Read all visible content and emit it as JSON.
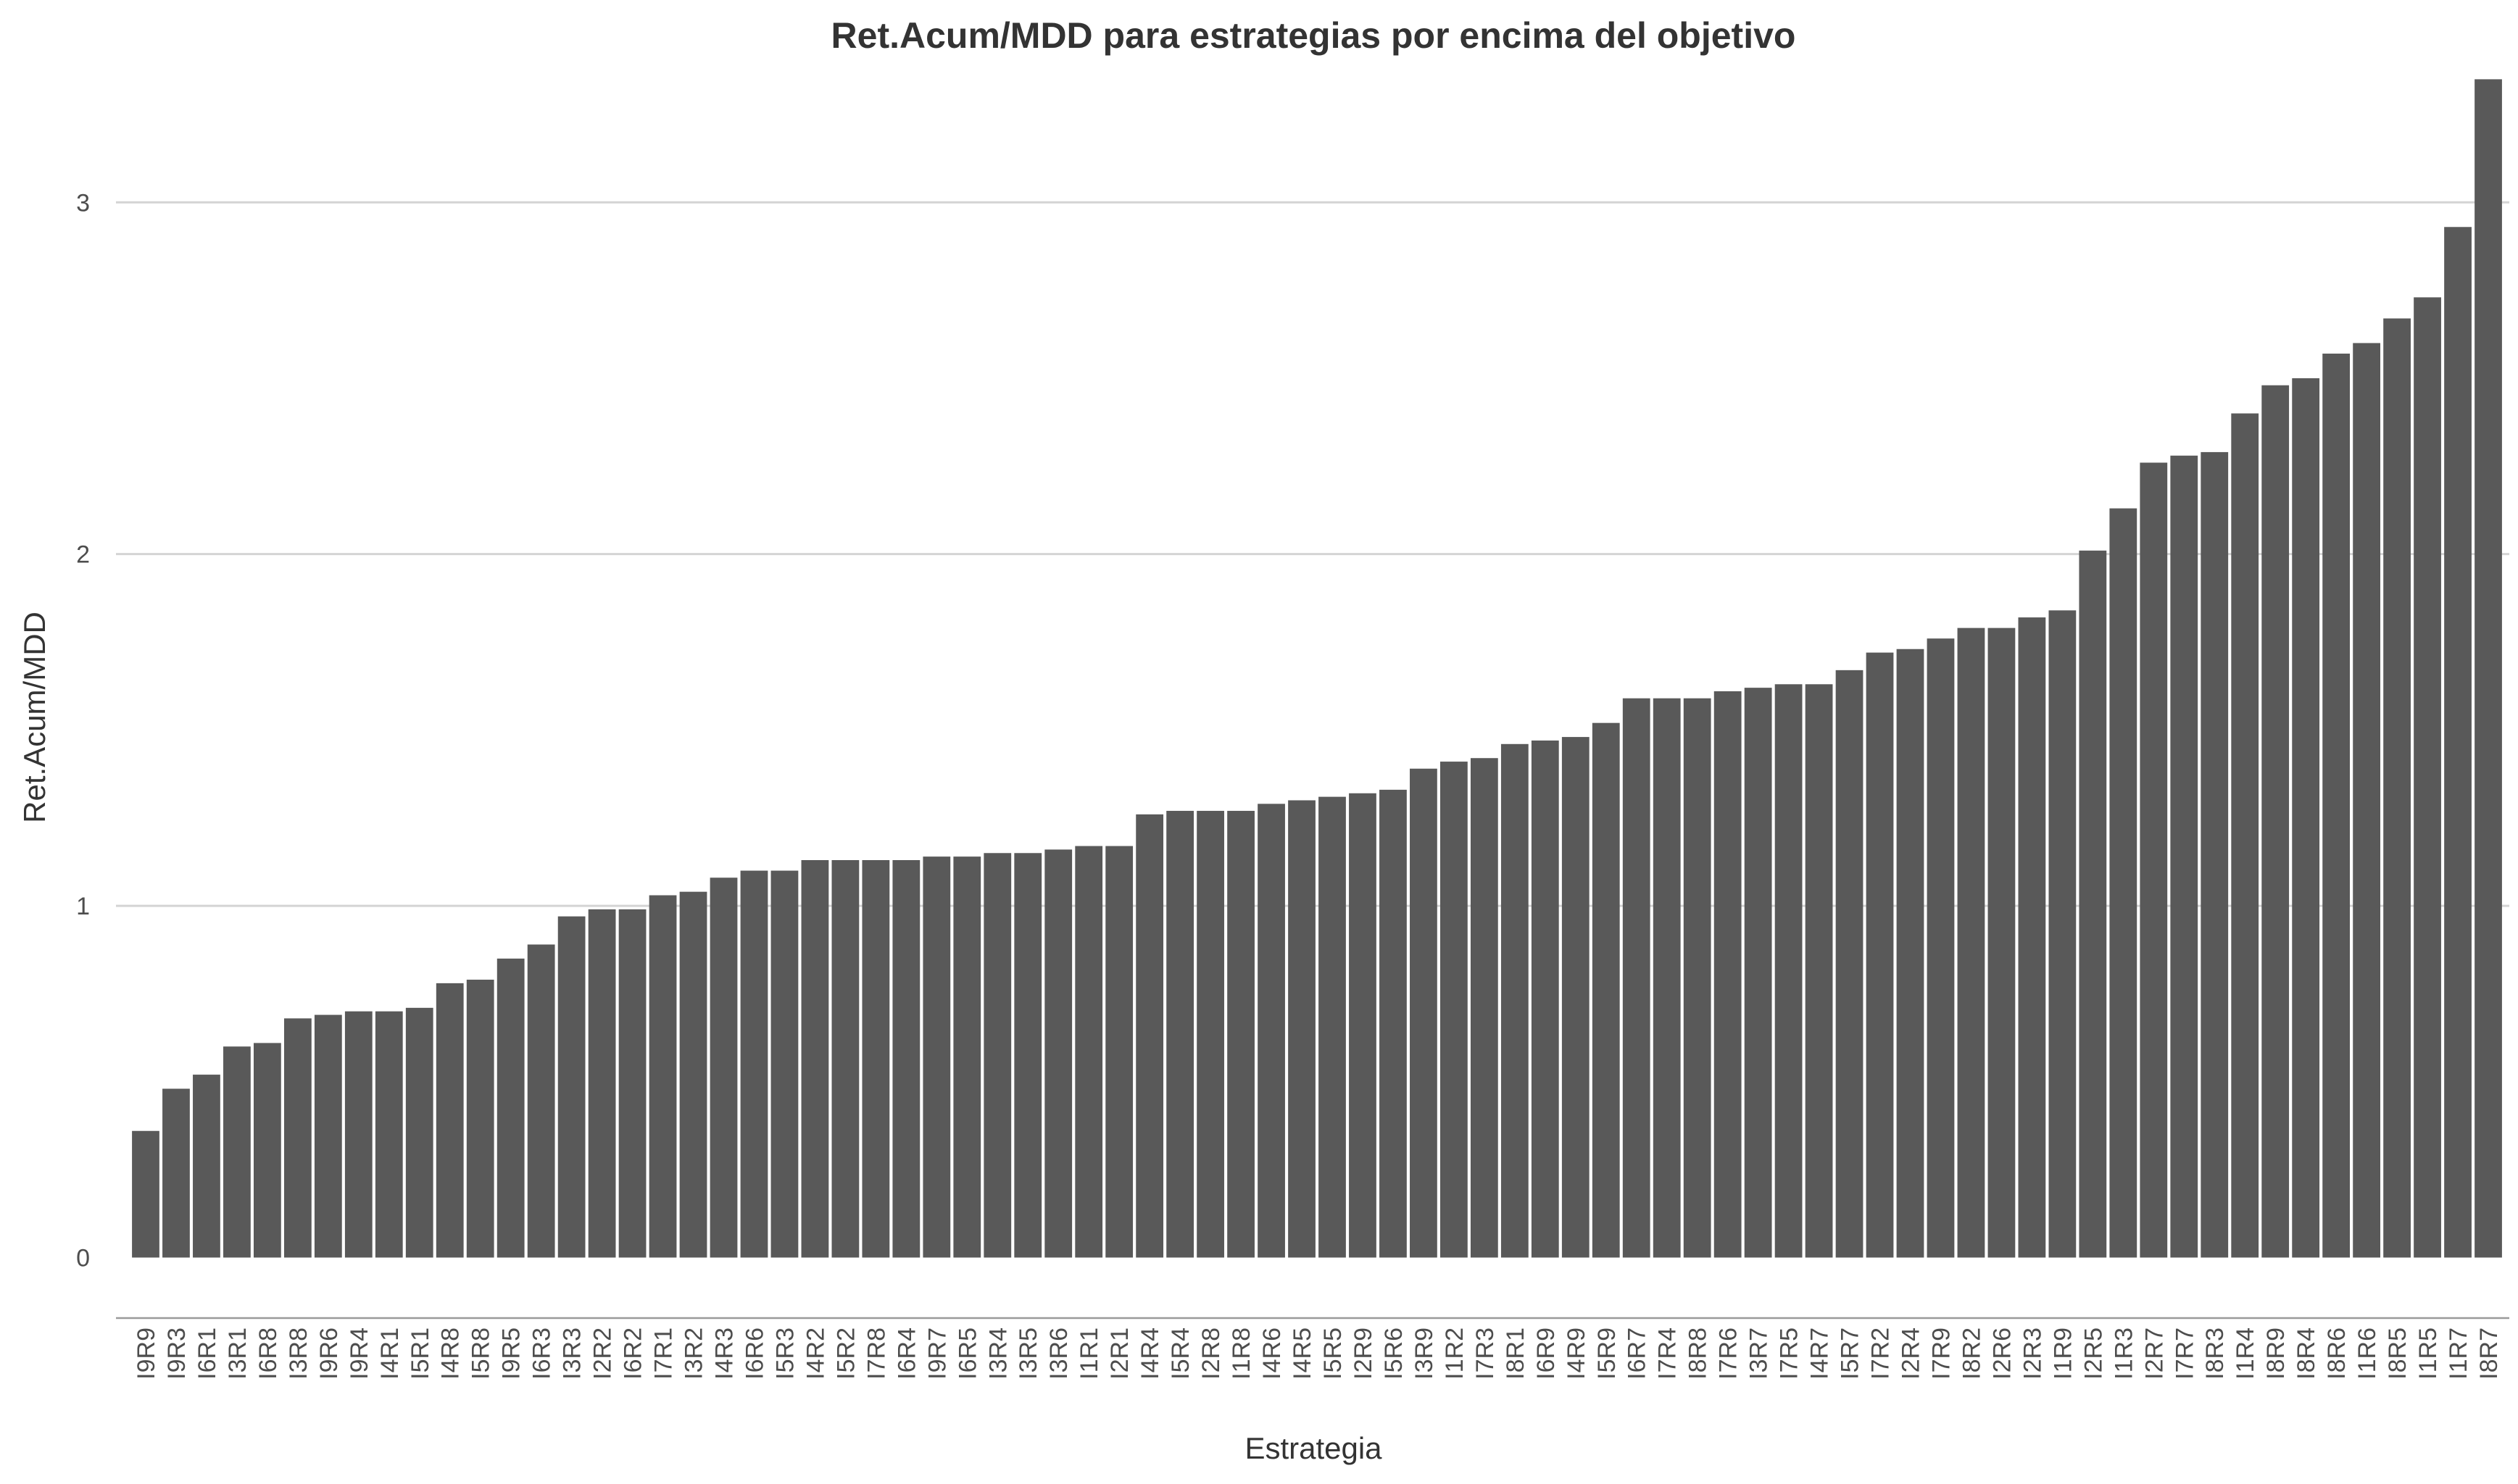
{
  "chart_data": {
    "type": "bar",
    "title": "Ret.Acum/MDD para estrategias por encima del objetivo",
    "xlabel": "Estrategia",
    "ylabel": "Ret.Acum/MDD",
    "ylim": [
      -0.17,
      3.46
    ],
    "yticks": [
      0,
      1,
      2,
      3
    ],
    "grid": true,
    "legend": "none",
    "bar_color": "#595959",
    "grid_color": "#d4d4d4",
    "categories": [
      "I9R9",
      "I9R3",
      "I6R1",
      "I3R1",
      "I6R8",
      "I3R8",
      "I9R6",
      "I9R4",
      "I4R1",
      "I5R1",
      "I4R8",
      "I5R8",
      "I9R5",
      "I6R3",
      "I3R3",
      "I2R2",
      "I6R2",
      "I7R1",
      "I3R2",
      "I4R3",
      "I6R6",
      "I5R3",
      "I4R2",
      "I5R2",
      "I7R8",
      "I6R4",
      "I9R7",
      "I6R5",
      "I3R4",
      "I3R5",
      "I3R6",
      "I1R1",
      "I2R1",
      "I4R4",
      "I5R4",
      "I2R8",
      "I1R8",
      "I4R6",
      "I4R5",
      "I5R5",
      "I2R9",
      "I5R6",
      "I3R9",
      "I1R2",
      "I7R3",
      "I8R1",
      "I6R9",
      "I4R9",
      "I5R9",
      "I6R7",
      "I7R4",
      "I8R8",
      "I7R6",
      "I3R7",
      "I7R5",
      "I4R7",
      "I5R7",
      "I7R2",
      "I2R4",
      "I7R9",
      "I8R2",
      "I2R6",
      "I2R3",
      "I1R9",
      "I2R5",
      "I1R3",
      "I2R7",
      "I7R7",
      "I8R3",
      "I1R4",
      "I8R9",
      "I8R4",
      "I8R6",
      "I1R6",
      "I8R5",
      "I1R5",
      "I1R7",
      "I8R7"
    ],
    "values": [
      0.36,
      0.48,
      0.52,
      0.6,
      0.61,
      0.68,
      0.69,
      0.7,
      0.7,
      0.71,
      0.78,
      0.79,
      0.85,
      0.89,
      0.97,
      0.99,
      0.99,
      1.03,
      1.04,
      1.08,
      1.1,
      1.1,
      1.13,
      1.13,
      1.13,
      1.13,
      1.14,
      1.14,
      1.15,
      1.15,
      1.16,
      1.17,
      1.17,
      1.26,
      1.27,
      1.27,
      1.27,
      1.29,
      1.3,
      1.31,
      1.32,
      1.33,
      1.39,
      1.41,
      1.42,
      1.46,
      1.47,
      1.48,
      1.52,
      1.59,
      1.59,
      1.59,
      1.61,
      1.62,
      1.63,
      1.63,
      1.67,
      1.72,
      1.73,
      1.76,
      1.79,
      1.79,
      1.82,
      1.84,
      2.01,
      2.13,
      2.26,
      2.28,
      2.29,
      2.4,
      2.48,
      2.5,
      2.57,
      2.6,
      2.67,
      2.73,
      2.93,
      3.35
    ]
  }
}
